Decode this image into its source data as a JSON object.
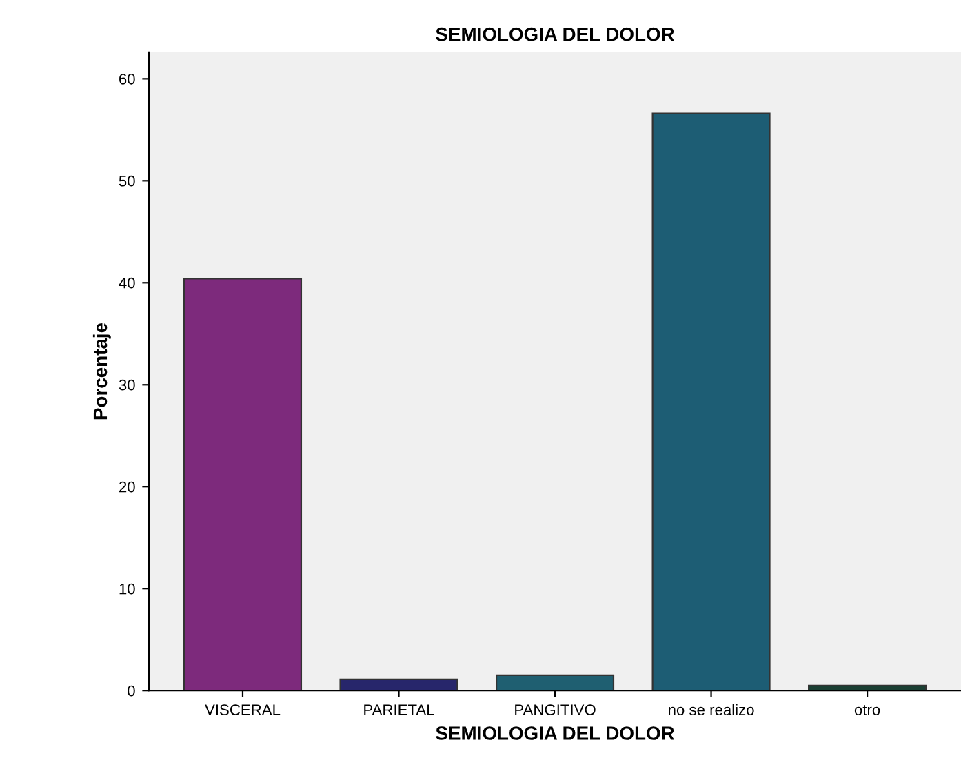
{
  "chart_data": {
    "type": "bar",
    "title": "SEMIOLOGIA DEL DOLOR",
    "xlabel": "SEMIOLOGIA DEL DOLOR",
    "ylabel": "Porcentaje",
    "categories": [
      "VISCERAL",
      "PARIETAL",
      "PANGITIVO",
      "no se realizo",
      "otro"
    ],
    "values": [
      40.4,
      1.1,
      1.5,
      56.6,
      0.5
    ],
    "colors": [
      "#7d2a7c",
      "#27266b",
      "#1f5f71",
      "#1d5d74",
      "#1b3f33"
    ],
    "ylim": [
      0,
      62.6
    ],
    "yticks": [
      0,
      10,
      20,
      30,
      40,
      50,
      60
    ],
    "grid": false
  }
}
